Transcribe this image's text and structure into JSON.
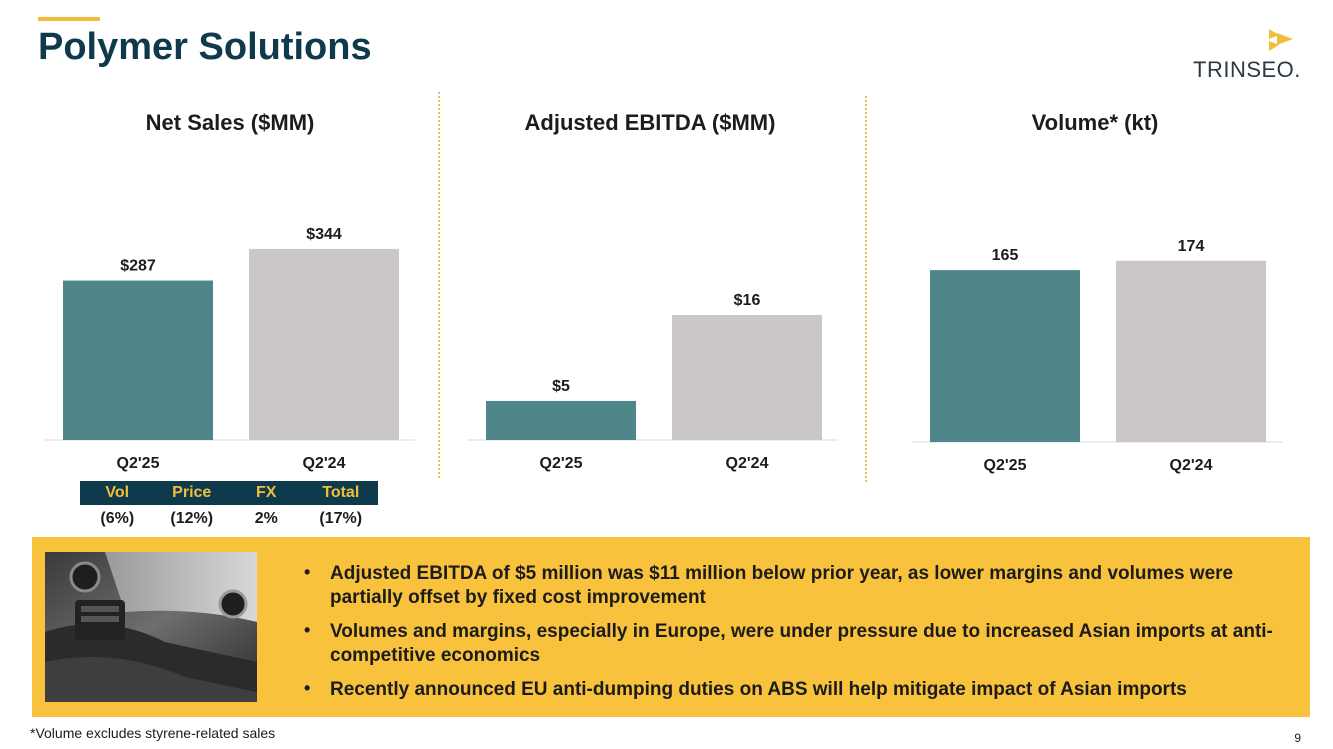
{
  "header": {
    "title": "Polymer Solutions",
    "logo_text": "TRINSEO."
  },
  "colors": {
    "accent": "#f2be3a",
    "navy": "#0e3a4b",
    "teal_bar": "#4e868a",
    "gray_bar": "#cbc7c6",
    "yellow_box": "#f8c23c"
  },
  "chart_data": [
    {
      "type": "bar",
      "title": "Net Sales ($MM)",
      "categories": [
        "Q2'25",
        "Q2'24"
      ],
      "values": [
        287,
        344
      ],
      "labels": [
        "$287",
        "$344"
      ],
      "ylim": [
        0,
        450
      ]
    },
    {
      "type": "bar",
      "title": "Adjusted EBITDA ($MM)",
      "categories": [
        "Q2'25",
        "Q2'24"
      ],
      "values": [
        5,
        16
      ],
      "labels": [
        "$5",
        "$16"
      ],
      "ylim": [
        0,
        32
      ]
    },
    {
      "type": "bar",
      "title": "Volume* (kt)",
      "categories": [
        "Q2'25",
        "Q2'24"
      ],
      "values": [
        165,
        174
      ],
      "labels": [
        "165",
        "174"
      ],
      "ylim": [
        0,
        240
      ]
    }
  ],
  "impact_table": {
    "headers": [
      "Vol",
      "Price",
      "FX",
      "Total"
    ],
    "values": [
      "(6%)",
      "(12%)",
      "2%",
      "(17%)"
    ]
  },
  "bullets": [
    "Adjusted EBITDA of $5 million was $11 million below prior year, as lower margins and volumes were partially offset by fixed cost improvement",
    "Volumes and margins, especially in Europe, were under pressure due to increased Asian imports at anti-competitive economics",
    "Recently announced EU anti-dumping duties on ABS will help mitigate impact of Asian imports"
  ],
  "bullet_marker": "•",
  "footnote": "*Volume excludes styrene-related sales",
  "page_number": "9"
}
